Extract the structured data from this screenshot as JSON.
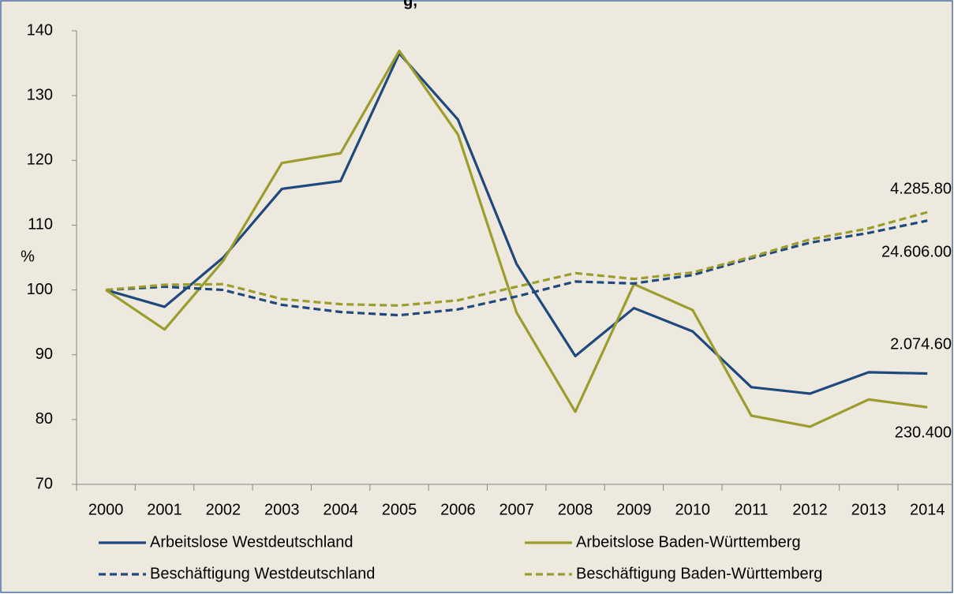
{
  "chart_data": {
    "type": "line",
    "title": "g,",
    "ylabel": "%",
    "categories": [
      "2000",
      "2001",
      "2002",
      "2003",
      "2004",
      "2005",
      "2006",
      "2007",
      "2008",
      "2009",
      "2010",
      "2011",
      "2012",
      "2013",
      "2014"
    ],
    "series": [
      {
        "name": "Arbeitslose Westdeutschland",
        "color": "#1f497d",
        "dash": false,
        "values": [
          100,
          97.4,
          105,
          115.6,
          116.8,
          136.5,
          126.3,
          104,
          89.8,
          97.2,
          93.6,
          85,
          84,
          87.3,
          87.1
        ]
      },
      {
        "name": "Arbeitslose Baden-Württemberg",
        "color": "#9c9d2e",
        "dash": false,
        "values": [
          100,
          93.9,
          104.5,
          119.6,
          121.1,
          136.9,
          124,
          96.5,
          81.2,
          100.9,
          96.9,
          80.6,
          78.9,
          83.1,
          81.9
        ]
      },
      {
        "name": "Beschäftigung Westdeutschland",
        "color": "#1f497d",
        "dash": true,
        "values": [
          100,
          100.5,
          100,
          97.7,
          96.6,
          96.1,
          97,
          99,
          101.3,
          101,
          102.3,
          104.9,
          107.3,
          108.8,
          110.7
        ]
      },
      {
        "name": "Beschäftigung Baden-Württemberg",
        "color": "#9c9d2e",
        "dash": true,
        "values": [
          100,
          100.8,
          100.9,
          98.6,
          97.8,
          97.6,
          98.4,
          100.5,
          102.6,
          101.7,
          102.7,
          105.1,
          107.8,
          109.5,
          112
        ]
      }
    ],
    "annotations": [
      "4.285.80",
      "24.606.00",
      "2.074.60",
      "230.400"
    ],
    "ylim": [
      70,
      140
    ],
    "yticks": [
      70,
      80,
      90,
      100,
      110,
      120,
      130,
      140
    ],
    "legend": "bottom"
  }
}
